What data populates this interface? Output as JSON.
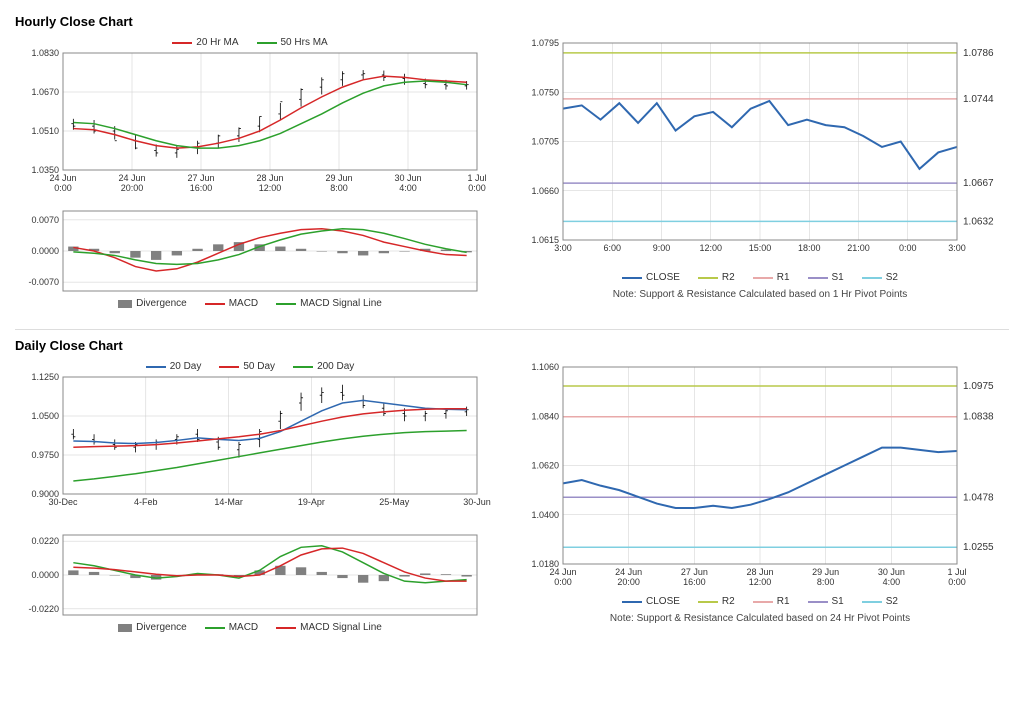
{
  "hourly": {
    "title": "Hourly Close Chart",
    "price_chart": {
      "type": "line+ohlc",
      "x_labels": [
        "24 Jun\n0:00",
        "24 Jun\n20:00",
        "27 Jun\n16:00",
        "28 Jun\n12:00",
        "29 Jun\n8:00",
        "30 Jun\n4:00",
        "1 Jul\n0:00"
      ],
      "ylim": [
        1.035,
        1.083
      ],
      "yticks": [
        1.035,
        1.051,
        1.067,
        1.083
      ],
      "series": {
        "ma20": {
          "label": "20 Hr MA",
          "color": "#d62728",
          "width": 1.5,
          "values": [
            1.052,
            1.0515,
            1.0495,
            1.047,
            1.045,
            1.044,
            1.0445,
            1.046,
            1.048,
            1.051,
            1.0555,
            1.0605,
            1.065,
            1.069,
            1.072,
            1.0735,
            1.073,
            1.072,
            1.0715,
            1.071
          ]
        },
        "ma50": {
          "label": "50 Hrs MA",
          "color": "#2ca02c",
          "width": 1.5,
          "values": [
            1.0545,
            1.054,
            1.052,
            1.0495,
            1.047,
            1.045,
            1.044,
            1.044,
            1.045,
            1.047,
            1.05,
            1.054,
            1.058,
            1.0625,
            1.0665,
            1.0695,
            1.071,
            1.0715,
            1.071,
            1.07
          ]
        },
        "candles": {
          "color": "#000000",
          "o": [
            1.054,
            1.053,
            1.051,
            1.047,
            1.043,
            1.042,
            1.044,
            1.046,
            1.049,
            1.053,
            1.058,
            1.064,
            1.069,
            1.072,
            1.074,
            1.074,
            1.0725,
            1.0705,
            1.07,
            1.0695
          ],
          "h": [
            1.056,
            1.0555,
            1.053,
            1.0495,
            1.0455,
            1.045,
            1.047,
            1.0495,
            1.0525,
            1.057,
            1.0625,
            1.0685,
            1.073,
            1.0755,
            1.076,
            1.0758,
            1.0745,
            1.0725,
            1.072,
            1.0715
          ],
          "l": [
            1.0515,
            1.05,
            1.0475,
            1.0435,
            1.0405,
            1.04,
            1.0415,
            1.044,
            1.0465,
            1.0505,
            1.0555,
            1.061,
            1.066,
            1.0695,
            1.072,
            1.0715,
            1.07,
            1.0685,
            1.068,
            1.068
          ],
          "c": [
            1.053,
            1.051,
            1.047,
            1.044,
            1.042,
            1.0435,
            1.046,
            1.049,
            1.052,
            1.057,
            1.063,
            1.068,
            1.072,
            1.0745,
            1.0745,
            1.073,
            1.071,
            1.07,
            1.0695,
            1.07
          ]
        }
      },
      "background": "#ffffff",
      "grid_color": "#cccccc",
      "axis_color": "#888888"
    },
    "macd_chart": {
      "type": "macd",
      "ylim": [
        -0.009,
        0.009
      ],
      "yticks": [
        -0.007,
        0.0,
        0.007
      ],
      "series": {
        "divergence": {
          "label": "Divergence",
          "color": "#808080",
          "values": [
            0.001,
            0.0005,
            -0.0005,
            -0.0015,
            -0.002,
            -0.001,
            0.0005,
            0.0015,
            0.002,
            0.0015,
            0.001,
            0.0005,
            0.0,
            -0.0005,
            -0.001,
            -0.0005,
            0.0,
            0.0005,
            0.0003,
            -0.0003
          ]
        },
        "macd": {
          "label": "MACD",
          "color": "#d62728",
          "width": 1.5,
          "values": [
            0.0008,
            0.0,
            -0.0015,
            -0.0035,
            -0.0045,
            -0.004,
            -0.0025,
            -0.0005,
            0.0015,
            0.003,
            0.004,
            0.0048,
            0.005,
            0.0045,
            0.0035,
            0.002,
            0.001,
            0.0,
            -0.0008,
            -0.001
          ]
        },
        "signal": {
          "label": "MACD Signal Line",
          "color": "#2ca02c",
          "width": 1.5,
          "values": [
            -0.0002,
            -0.0005,
            -0.001,
            -0.002,
            -0.0028,
            -0.003,
            -0.0028,
            -0.002,
            -0.0008,
            0.001,
            0.0025,
            0.0038,
            0.0045,
            0.005,
            0.0048,
            0.004,
            0.0028,
            0.0015,
            0.0005,
            -0.0003
          ]
        }
      },
      "background": "#ffffff",
      "grid_color": "#cccccc",
      "axis_color": "#888888"
    },
    "sr_chart": {
      "type": "line+levels",
      "x_labels": [
        "3:00",
        "6:00",
        "9:00",
        "12:00",
        "15:00",
        "18:00",
        "21:00",
        "0:00",
        "3:00"
      ],
      "ylim": [
        1.0615,
        1.0795
      ],
      "yticks": [
        1.0615,
        1.066,
        1.0705,
        1.075,
        1.0795
      ],
      "close": {
        "label": "CLOSE",
        "color": "#2f68b0",
        "width": 2,
        "values": [
          1.0735,
          1.0738,
          1.0725,
          1.074,
          1.0722,
          1.074,
          1.0715,
          1.0728,
          1.0732,
          1.0718,
          1.0735,
          1.0742,
          1.072,
          1.0725,
          1.072,
          1.0718,
          1.071,
          1.07,
          1.0705,
          1.068,
          1.0695,
          1.07
        ]
      },
      "levels": {
        "R2": {
          "value": 1.0786,
          "color": "#b8c94a"
        },
        "R1": {
          "value": 1.0744,
          "color": "#e8a9a9"
        },
        "S1": {
          "value": 1.0667,
          "color": "#9a8fc7"
        },
        "S2": {
          "value": 1.0632,
          "color": "#7fcfe0"
        }
      },
      "note": "Note: Support & Resistance Calculated based on 1 Hr Pivot Points",
      "background": "#ffffff",
      "grid_color": "#cccccc",
      "axis_color": "#888888"
    }
  },
  "daily": {
    "title": "Daily Close Chart",
    "price_chart": {
      "type": "line+ohlc",
      "x_labels": [
        "30-Dec",
        "4-Feb",
        "14-Mar",
        "19-Apr",
        "25-May",
        "30-Jun"
      ],
      "ylim": [
        0.9,
        1.125
      ],
      "yticks": [
        0.9,
        0.975,
        1.05,
        1.125
      ],
      "series": {
        "ma20": {
          "label": "20 Day",
          "color": "#2f68b0",
          "width": 1.5,
          "values": [
            1.002,
            1.001,
            0.998,
            0.997,
            0.999,
            1.003,
            1.008,
            1.005,
            1.003,
            1.007,
            1.02,
            1.04,
            1.06,
            1.075,
            1.08,
            1.075,
            1.07,
            1.065,
            1.063,
            1.062
          ]
        },
        "ma50": {
          "label": "50 Day",
          "color": "#d62728",
          "width": 1.5,
          "values": [
            0.99,
            0.991,
            0.992,
            0.993,
            0.995,
            0.998,
            1.002,
            1.006,
            1.01,
            1.015,
            1.022,
            1.031,
            1.04,
            1.048,
            1.054,
            1.058,
            1.061,
            1.063,
            1.064,
            1.064
          ]
        },
        "ma200": {
          "label": "200 Day",
          "color": "#2ca02c",
          "width": 1.5,
          "values": [
            0.925,
            0.929,
            0.934,
            0.939,
            0.945,
            0.951,
            0.958,
            0.965,
            0.972,
            0.979,
            0.986,
            0.993,
            1.0,
            1.006,
            1.011,
            1.015,
            1.018,
            1.02,
            1.021,
            1.022
          ]
        },
        "candles": {
          "color": "#000000",
          "o": [
            1.015,
            1.005,
            0.995,
            0.99,
            0.995,
            1.005,
            1.015,
            1.0,
            0.985,
            1.005,
            1.04,
            1.075,
            1.09,
            1.095,
            1.08,
            1.065,
            1.055,
            1.05,
            1.055,
            1.058
          ],
          "h": [
            1.025,
            1.015,
            1.005,
            1.0,
            1.005,
            1.015,
            1.025,
            1.01,
            1.0,
            1.025,
            1.06,
            1.095,
            1.105,
            1.11,
            1.09,
            1.075,
            1.065,
            1.06,
            1.065,
            1.068
          ],
          "l": [
            1.005,
            0.995,
            0.985,
            0.98,
            0.985,
            0.995,
            1.0,
            0.985,
            0.97,
            0.99,
            1.025,
            1.06,
            1.075,
            1.08,
            1.065,
            1.05,
            1.04,
            1.04,
            1.045,
            1.05
          ],
          "c": [
            1.01,
            1.0,
            0.99,
            0.995,
            1.0,
            1.01,
            1.005,
            0.99,
            0.995,
            1.02,
            1.055,
            1.085,
            1.095,
            1.09,
            1.07,
            1.055,
            1.05,
            1.055,
            1.06,
            1.062
          ]
        }
      },
      "background": "#ffffff",
      "grid_color": "#cccccc",
      "axis_color": "#888888"
    },
    "macd_chart": {
      "type": "macd",
      "ylim": [
        -0.026,
        0.026
      ],
      "yticks": [
        -0.022,
        0.0,
        0.022
      ],
      "series": {
        "divergence": {
          "label": "Divergence",
          "color": "#808080",
          "values": [
            0.003,
            0.002,
            0.0,
            -0.002,
            -0.003,
            -0.001,
            0.001,
            0.0005,
            -0.001,
            0.003,
            0.006,
            0.005,
            0.002,
            -0.002,
            -0.005,
            -0.004,
            -0.001,
            0.001,
            0.0005,
            -0.001
          ]
        },
        "macd": {
          "label": "MACD",
          "color": "#2ca02c",
          "width": 1.5,
          "values": [
            0.008,
            0.006,
            0.003,
            0.0,
            -0.002,
            -0.001,
            0.001,
            0.0,
            -0.002,
            0.003,
            0.012,
            0.018,
            0.019,
            0.015,
            0.008,
            0.001,
            -0.004,
            -0.005,
            -0.004,
            -0.003
          ]
        },
        "signal": {
          "label": "MACD Signal Line",
          "color": "#d62728",
          "width": 1.5,
          "values": [
            0.005,
            0.0045,
            0.0035,
            0.002,
            0.0005,
            -0.0005,
            0.0,
            0.0,
            -0.001,
            0.0,
            0.006,
            0.013,
            0.017,
            0.0175,
            0.014,
            0.008,
            0.002,
            -0.002,
            -0.004,
            -0.004
          ]
        }
      },
      "background": "#ffffff",
      "grid_color": "#cccccc",
      "axis_color": "#888888"
    },
    "sr_chart": {
      "type": "line+levels",
      "x_labels": [
        "24 Jun\n0:00",
        "24 Jun\n20:00",
        "27 Jun\n16:00",
        "28 Jun\n12:00",
        "29 Jun\n8:00",
        "30 Jun\n4:00",
        "1 Jul\n0:00"
      ],
      "ylim": [
        1.018,
        1.106
      ],
      "yticks": [
        1.018,
        1.04,
        1.062,
        1.084,
        1.106
      ],
      "close": {
        "label": "CLOSE",
        "color": "#2f68b0",
        "width": 2,
        "values": [
          1.054,
          1.0555,
          1.053,
          1.051,
          1.048,
          1.045,
          1.043,
          1.043,
          1.044,
          1.043,
          1.0445,
          1.047,
          1.05,
          1.054,
          1.058,
          1.062,
          1.066,
          1.07,
          1.07,
          1.069,
          1.068,
          1.0685
        ]
      },
      "levels": {
        "R2": {
          "value": 1.0975,
          "color": "#b8c94a"
        },
        "R1": {
          "value": 1.0838,
          "color": "#e8a9a9"
        },
        "S1": {
          "value": 1.0478,
          "color": "#9a8fc7"
        },
        "S2": {
          "value": 1.0255,
          "color": "#7fcfe0"
        }
      },
      "note": "Note: Support & Resistance Calculated based on 24 Hr Pivot Points",
      "background": "#ffffff",
      "grid_color": "#cccccc",
      "axis_color": "#888888"
    }
  }
}
